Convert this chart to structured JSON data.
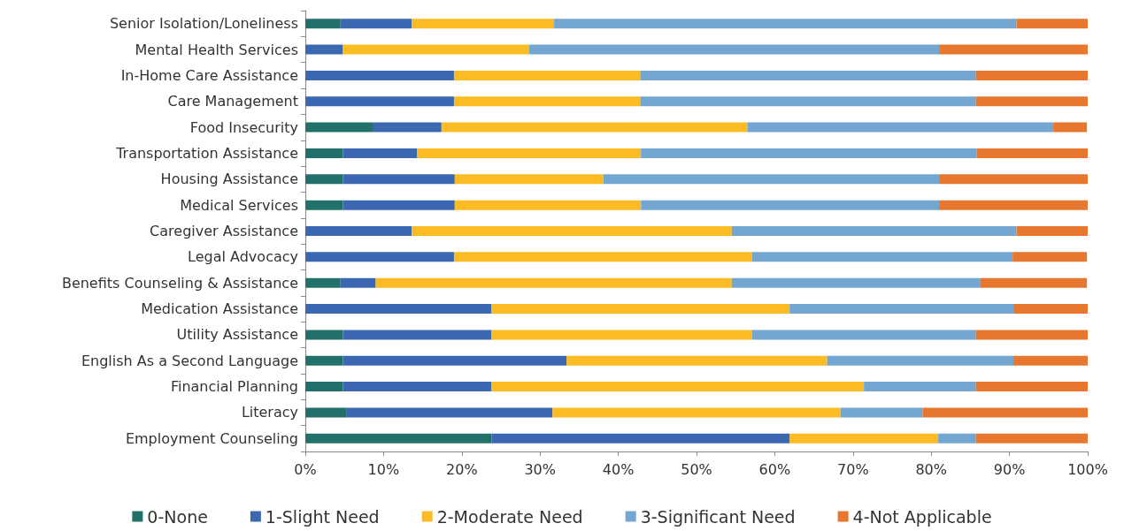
{
  "chart_data": {
    "type": "bar",
    "orientation": "horizontal",
    "stacked": true,
    "categories": [
      "Senior Isolation/Loneliness",
      "Mental Health Services",
      "In-Home Care Assistance",
      "Care Management",
      "Food Insecurity",
      "Transportation Assistance",
      "Housing Assistance",
      "Medical Services",
      "Caregiver Assistance",
      "Legal Advocacy",
      "Benefits Counseling & Assistance",
      "Medication Assistance",
      "Utility Assistance",
      "English As a Second Language",
      "Financial Planning",
      "Literacy",
      "Employment Counseling"
    ],
    "series": [
      {
        "name": "0-None",
        "color": "#22706a",
        "values": [
          4.5,
          0,
          0,
          0,
          8.7,
          4.8,
          4.8,
          4.8,
          0,
          0,
          4.5,
          0,
          4.8,
          4.8,
          4.8,
          5.3,
          23.8
        ]
      },
      {
        "name": "1-Slight Need",
        "color": "#3c68b1",
        "values": [
          9.1,
          4.8,
          19.0,
          19.0,
          8.7,
          9.5,
          14.3,
          14.3,
          13.6,
          19.0,
          4.5,
          23.8,
          19.0,
          28.6,
          19.0,
          26.3,
          38.1
        ]
      },
      {
        "name": "2-Moderate Need",
        "color": "#fbbb22",
        "values": [
          18.2,
          23.8,
          23.8,
          23.8,
          39.1,
          28.6,
          19.0,
          23.8,
          40.9,
          38.1,
          45.5,
          38.1,
          33.3,
          33.3,
          47.6,
          36.8,
          19.0
        ]
      },
      {
        "name": "3-Significant Need",
        "color": "#73a7d1",
        "values": [
          59.1,
          52.4,
          42.9,
          42.9,
          39.1,
          42.9,
          42.9,
          38.1,
          36.4,
          33.3,
          31.8,
          28.6,
          28.6,
          23.8,
          14.3,
          10.5,
          4.8
        ]
      },
      {
        "name": "4-Not Applicable",
        "color": "#e7772f",
        "values": [
          9.1,
          19.0,
          14.3,
          14.3,
          4.3,
          14.3,
          19.0,
          19.0,
          9.1,
          9.5,
          13.6,
          9.5,
          14.3,
          9.5,
          14.3,
          21.1,
          14.3
        ]
      }
    ],
    "xlim": [
      0,
      100
    ],
    "xticks": [
      {
        "value": 0,
        "label": "0%"
      },
      {
        "value": 10,
        "label": "10%"
      },
      {
        "value": 20,
        "label": "20%"
      },
      {
        "value": 30,
        "label": "30%"
      },
      {
        "value": 40,
        "label": "40%"
      },
      {
        "value": 50,
        "label": "50%"
      },
      {
        "value": 60,
        "label": "60%"
      },
      {
        "value": 70,
        "label": "70%"
      },
      {
        "value": 80,
        "label": "80%"
      },
      {
        "value": 90,
        "label": "90%"
      },
      {
        "value": 100,
        "label": "100%"
      }
    ],
    "grid": false,
    "legend": "bottom"
  }
}
